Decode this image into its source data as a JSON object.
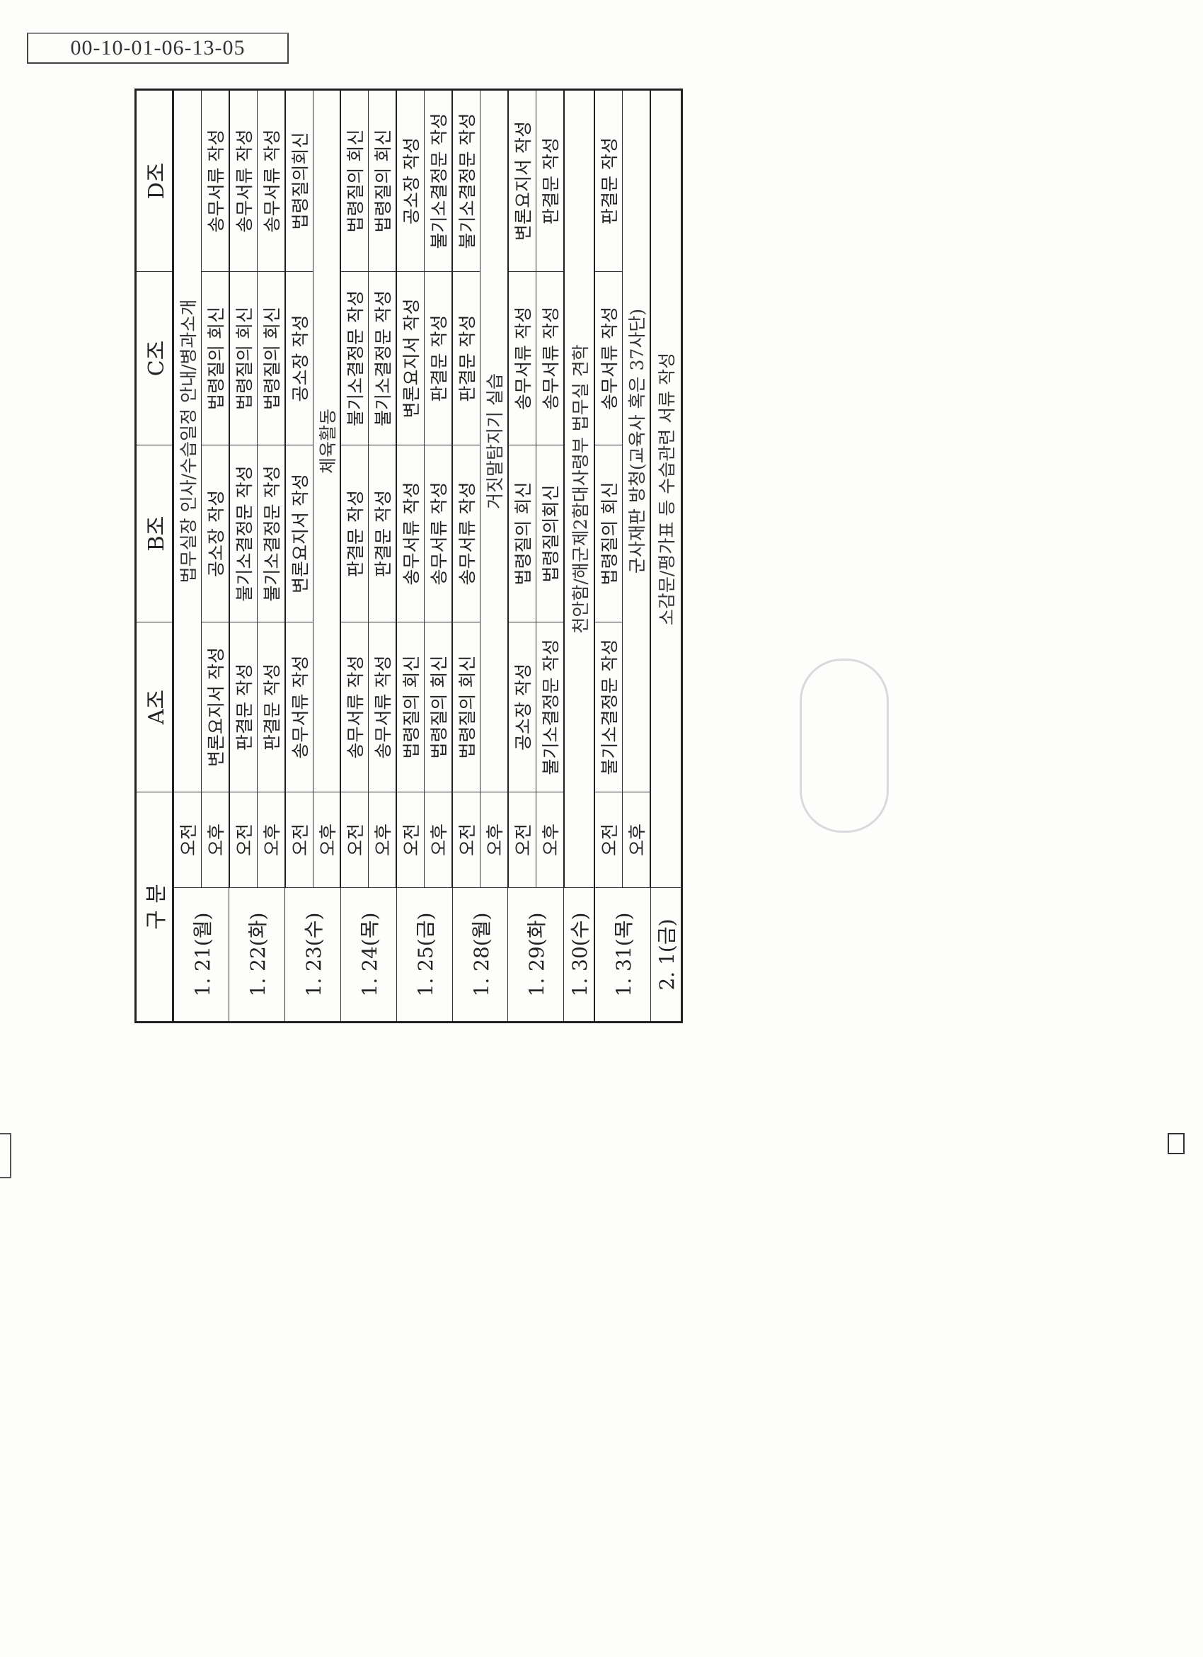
{
  "doc_id": "00-10-01-06-13-05",
  "header": {
    "division": "구 분",
    "groups": [
      "A조",
      "B조",
      "C조",
      "D조"
    ]
  },
  "rows": [
    {
      "date": "1. 21(월)",
      "slots": [
        {
          "time": "오전",
          "span": "법무실장 인사/수습일정 안내/병과소개"
        },
        {
          "time": "오후",
          "cells": [
            "변론요지서 작성",
            "공소장 작성",
            "법령질의 회신",
            "송무서류 작성"
          ]
        }
      ]
    },
    {
      "date": "1. 22(화)",
      "slots": [
        {
          "time": "오전",
          "cells": [
            "판결문 작성",
            "불기소결정문 작성",
            "법령질의 회신",
            "송무서류 작성"
          ]
        },
        {
          "time": "오후",
          "cells": [
            "판결문 작성",
            "불기소결정문 작성",
            "법령질의 회신",
            "송무서류 작성"
          ]
        }
      ]
    },
    {
      "date": "1. 23(수)",
      "slots": [
        {
          "time": "오전",
          "cells": [
            "송무서류 작성",
            "변론요지서 작성",
            "공소장 작성",
            "법령질의회신"
          ]
        },
        {
          "time": "오후",
          "span": "체육활동"
        }
      ]
    },
    {
      "date": "1. 24(목)",
      "slots": [
        {
          "time": "오전",
          "cells": [
            "송무서류 작성",
            "판결문 작성",
            "불기소결정문 작성",
            "법령질의 회신"
          ]
        },
        {
          "time": "오후",
          "cells": [
            "송무서류 작성",
            "판결문 작성",
            "불기소결정문 작성",
            "법령질의 회신"
          ]
        }
      ]
    },
    {
      "date": "1. 25(금)",
      "slots": [
        {
          "time": "오전",
          "cells": [
            "법령질의 회신",
            "송무서류 작성",
            "변론요지서 작성",
            "공소장 작성"
          ]
        },
        {
          "time": "오후",
          "cells": [
            "법령질의 회신",
            "송무서류 작성",
            "판결문 작성",
            "불기소결정문 작성"
          ]
        }
      ]
    },
    {
      "date": "1. 28(월)",
      "slots": [
        {
          "time": "오전",
          "cells": [
            "법령질의 회신",
            "송무서류 작성",
            "판결문 작성",
            "불기소결정문 작성"
          ]
        },
        {
          "time": "오후",
          "span": "거짓말탐지기 실습"
        }
      ]
    },
    {
      "date": "1. 29(화)",
      "slots": [
        {
          "time": "오전",
          "cells": [
            "공소장 작성",
            "법령질의 회신",
            "송무서류 작성",
            "변론요지서 작성"
          ]
        },
        {
          "time": "오후",
          "cells": [
            "불기소결정문 작성",
            "법령질의회신",
            "송무서류 작성",
            "판결문 작성"
          ]
        }
      ]
    },
    {
      "date": "1. 30(수)",
      "full": "천안함/해군제2함대사령부 법무실 견학"
    },
    {
      "date": "1. 31(목)",
      "slots": [
        {
          "time": "오전",
          "cells": [
            "불기소결정문 작성",
            "법령질의 회신",
            "송무서류 작성",
            "판결문 작성"
          ]
        },
        {
          "time": "오후",
          "span": "군사재판 방청(교육사 혹은 37사단)"
        }
      ]
    },
    {
      "date": "2. 1(금)",
      "full": "소감문/평가표 등 수습관련 서류 작성"
    }
  ]
}
